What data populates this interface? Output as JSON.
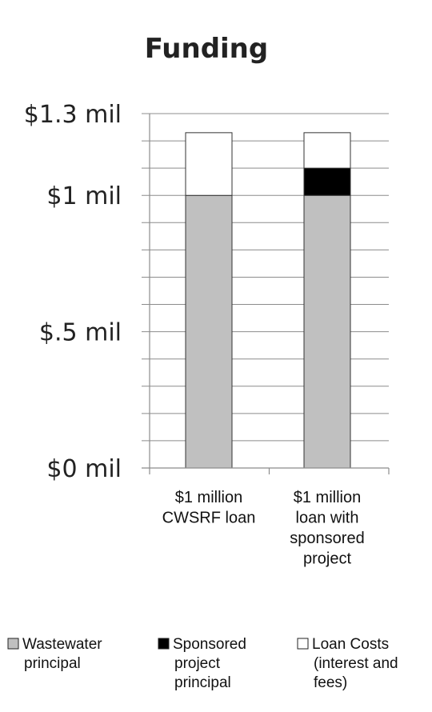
{
  "chart_data": {
    "type": "bar",
    "stacked": true,
    "title": "Funding",
    "xlabel": "",
    "ylabel": "",
    "ylim": [
      0,
      1.3
    ],
    "grid": true,
    "legend_position": "bottom",
    "y_ticks": [
      {
        "value": 0,
        "label": "$0 mil"
      },
      {
        "value": 0.5,
        "label": "$.5 mil"
      },
      {
        "value": 1.0,
        "label": "$1 mil"
      },
      {
        "value": 1.3,
        "label": "$1.3 mil"
      }
    ],
    "gridline_step": 0.1,
    "categories": [
      [
        "$1 million",
        "CWSRF loan"
      ],
      [
        "$1 million",
        "loan with",
        "sponsored",
        "project"
      ]
    ],
    "series": [
      {
        "name": [
          "Wastewater",
          "principal"
        ],
        "color": "#c0c0c0",
        "values": [
          1.0,
          1.0
        ]
      },
      {
        "name": [
          "Sponsored",
          "project",
          "principal"
        ],
        "color": "#000000",
        "values": [
          0,
          0.1
        ]
      },
      {
        "name": [
          "Loan Costs",
          "(interest and",
          "fees)"
        ],
        "color": "#ffffff",
        "values": [
          0.23,
          0.13
        ]
      }
    ]
  }
}
